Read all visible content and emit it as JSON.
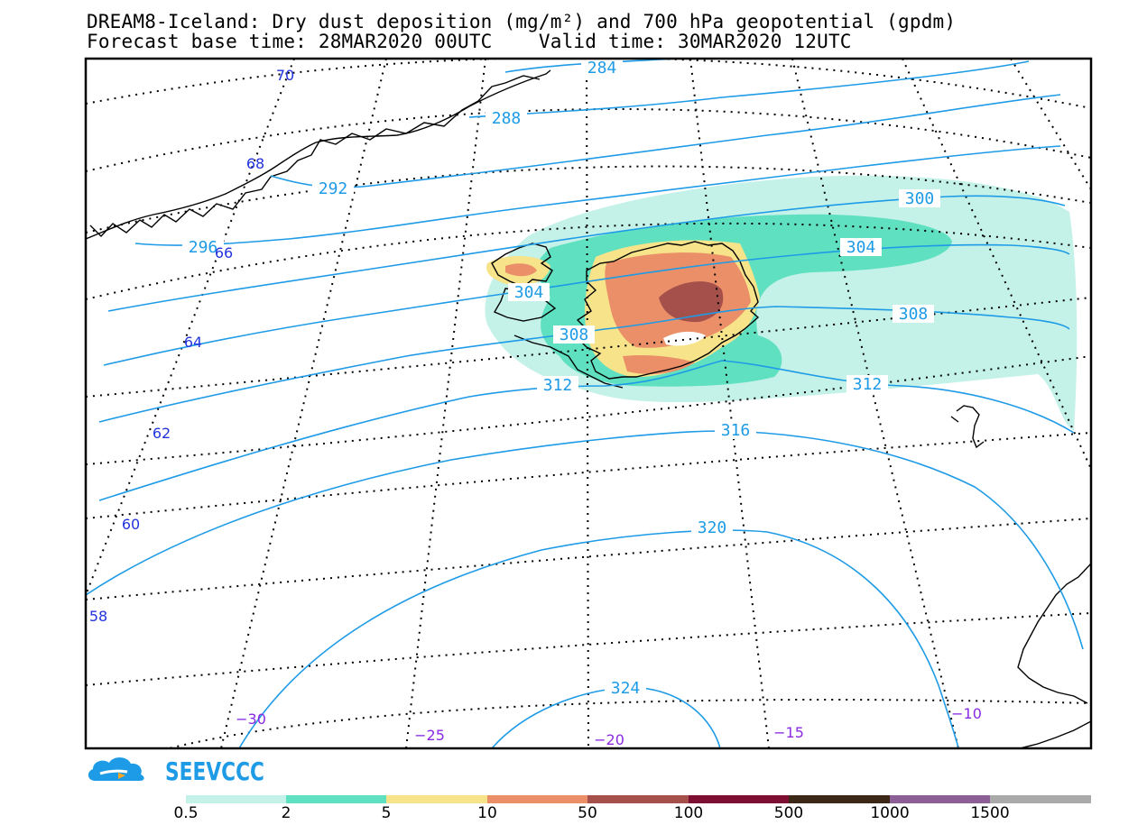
{
  "title": {
    "line1": "DREAM8-Iceland: Dry dust deposition (mg/m²) and 700 hPa geopotential (gpdm)",
    "line2": "Forecast base time: 28MAR2020 00UTC    Valid time: 30MAR2020 12UTC"
  },
  "logo": {
    "text": "SEEVCCC",
    "icon": "cloud-icon",
    "color": "#1e9be6"
  },
  "contours": {
    "color": "#1e9be6",
    "labels": [
      "284",
      "288",
      "292",
      "296",
      "300",
      "304",
      "304",
      "308",
      "308",
      "312",
      "312",
      "316",
      "320",
      "324"
    ]
  },
  "latitude_labels": {
    "color": "#2233dd",
    "values": [
      "70",
      "68",
      "66",
      "64",
      "62",
      "60",
      "58"
    ]
  },
  "longitude_labels": {
    "color": "#8a2be2",
    "values": [
      "−30",
      "−25",
      "−20",
      "−15",
      "−10"
    ]
  },
  "legend": {
    "colors": [
      "#c4f2e9",
      "#5fe0c0",
      "#f7e38a",
      "#eb8f69",
      "#a5504a",
      "#7c0f32",
      "#3d2716",
      "#8c6096",
      "#aaaaaa"
    ],
    "labels": [
      "0.5",
      "2",
      "5",
      "10",
      "50",
      "100",
      "500",
      "1000",
      "1500"
    ]
  }
}
